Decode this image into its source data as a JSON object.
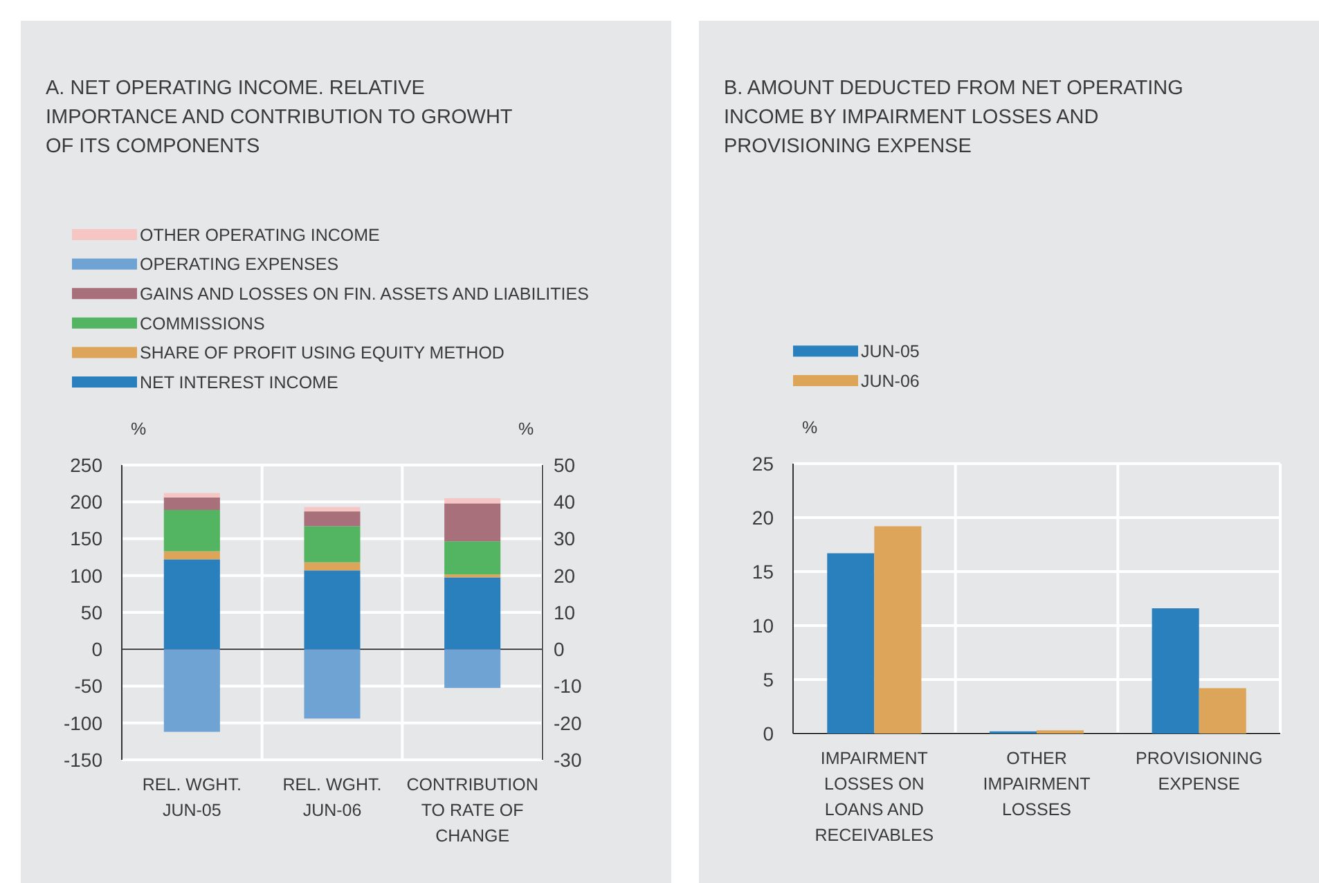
{
  "chart_data": [
    {
      "type": "bar",
      "stacked": true,
      "title": "A. NET OPERATING INCOME. RELATIVE IMPORTANCE AND CONTRIBUTION TO GROWHT OF ITS COMPONENTS",
      "ylabel": "%",
      "y2label": "%",
      "categories": [
        "REL. WGHT. JUN-05",
        "REL. WGHT. JUN-06",
        "CONTRIBUTION TO RATE OF CHANGE"
      ],
      "series": [
        {
          "name": "NET INTEREST INCOME",
          "color": "#2a7fbd",
          "values": [
            122,
            107,
            null
          ]
        },
        {
          "name": "SHARE OF PROFIT USING EQUITY METHOD",
          "color": "#dca55a",
          "values": [
            11,
            11,
            null
          ]
        },
        {
          "name": "COMMISSIONS",
          "color": "#53b462",
          "values": [
            56,
            49,
            null
          ]
        },
        {
          "name": "GAINS AND LOSSES ON FIN. ASSETS AND LIABILITIES",
          "color": "#a8707a",
          "values": [
            17,
            20,
            null
          ]
        },
        {
          "name": "OPERATING EXPENSES",
          "color": "#6fa3d4",
          "values": [
            -112,
            -94,
            null
          ]
        },
        {
          "name": "OTHER OPERATING INCOME",
          "color": "#f5c6c4",
          "values": [
            6,
            6,
            null
          ]
        },
        {
          "color": "#2a7fbd",
          "axis": "y2",
          "values": [
            null,
            null,
            19.5
          ]
        },
        {
          "color": "#dca55a",
          "axis": "y2",
          "values": [
            null,
            null,
            0.8
          ]
        },
        {
          "color": "#53b462",
          "axis": "y2",
          "values": [
            null,
            null,
            9
          ]
        },
        {
          "color": "#a8707a",
          "axis": "y2",
          "values": [
            null,
            null,
            10.3
          ]
        },
        {
          "color": "#6fa3d4",
          "axis": "y2",
          "values": [
            null,
            null,
            -10.5
          ]
        },
        {
          "color": "#f5c6c4",
          "axis": "y2",
          "values": [
            null,
            null,
            1.4
          ]
        }
      ],
      "ylim": [
        -150,
        250
      ],
      "yticks": [
        -150,
        -100,
        -50,
        0,
        50,
        100,
        150,
        200,
        250
      ],
      "y2lim": [
        -30,
        50
      ],
      "y2ticks": [
        -30,
        -20,
        -10,
        0,
        10,
        20,
        30,
        40,
        50
      ],
      "grid": true,
      "legend": "top left"
    },
    {
      "type": "bar",
      "title": "B. AMOUNT DEDUCTED FROM NET OPERATING INCOME BY IMPAIRMENT LOSSES AND PROVISIONING EXPENSE",
      "ylabel": "%",
      "categories": [
        "IMPAIRMENT LOSSES ON LOANS AND RECEIVABLES",
        "OTHER IMPAIRMENT LOSSES",
        "PROVISIONING EXPENSE"
      ],
      "series": [
        {
          "name": "JUN-05",
          "color": "#2a7fbd",
          "values": [
            16.7,
            0.2,
            11.6
          ]
        },
        {
          "name": "JUN-06",
          "color": "#dca55a",
          "values": [
            19.2,
            0.3,
            4.2
          ]
        }
      ],
      "ylim": [
        0,
        25
      ],
      "yticks": [
        0,
        5,
        10,
        15,
        20,
        25
      ],
      "grid": true,
      "legend": "top left"
    }
  ]
}
